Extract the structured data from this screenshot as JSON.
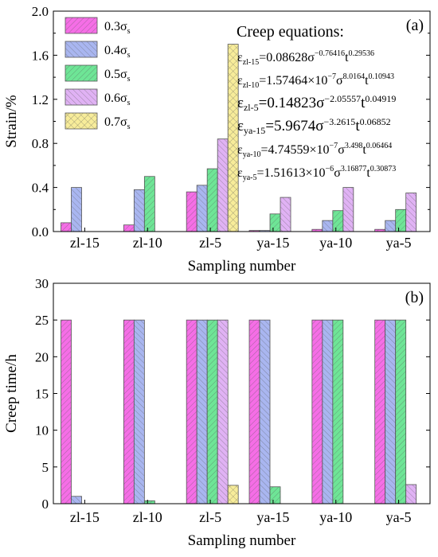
{
  "colors": {
    "0.3σs": "#f56ee6",
    "0.4σs": "#a9b6f0",
    "0.5σs": "#6ee596",
    "0.6σs": "#e0b2f4",
    "0.7σs": "#f7ec9a"
  },
  "chart_data": [
    {
      "type": "bar",
      "panel_label": "(a)",
      "ylabel": "Strain/%",
      "xlabel": "Sampling number",
      "ylim": [
        0,
        2.0
      ],
      "yticks": [
        "0.0",
        "0.4",
        "0.8",
        "1.2",
        "1.6",
        "2.0"
      ],
      "categories": [
        "zl-15",
        "zl-10",
        "zl-5",
        "ya-15",
        "ya-10",
        "ya-5"
      ],
      "legend_position": "top-left",
      "series": [
        {
          "name": "0.3σs",
          "base": "0.3σ",
          "sub": "s",
          "values": [
            0.08,
            0.06,
            0.36,
            0.01,
            0.02,
            0.02
          ]
        },
        {
          "name": "0.4σs",
          "base": "0.4σ",
          "sub": "s",
          "values": [
            0.4,
            0.38,
            0.42,
            0.01,
            0.1,
            0.1
          ]
        },
        {
          "name": "0.5σs",
          "base": "0.5σ",
          "sub": "s",
          "values": [
            0.0,
            0.5,
            0.57,
            0.16,
            0.19,
            0.2
          ]
        },
        {
          "name": "0.6σs",
          "base": "0.6σ",
          "sub": "s",
          "values": [
            0.0,
            0.0,
            0.84,
            0.31,
            0.4,
            0.35
          ]
        },
        {
          "name": "0.7σs",
          "base": "0.7σ",
          "sub": "s",
          "values": [
            0.0,
            0.0,
            1.7,
            0.0,
            0.0,
            0.0
          ]
        }
      ],
      "annotation_title": "Creep equations:",
      "equations": [
        {
          "sub": "zl-15",
          "text": "=0.08628σ",
          "exp1": "−0.76416",
          "t": "t",
          "exp2": "0.29536"
        },
        {
          "sub": "zl-10",
          "text": "=1.57464×10",
          "exp0": "−7",
          "sigma": "σ",
          "exp1": "8.0164",
          "t": "t",
          "exp2": "0.10943"
        },
        {
          "sub": "zl-5",
          "text": "=0.14823σ",
          "exp1": "−2.05557",
          "t": "t",
          "exp2": "0.04919"
        },
        {
          "sub": "ya-15",
          "text": "=5.9674σ",
          "exp1": "−3.2615",
          "t": "t",
          "exp2": "0.06852"
        },
        {
          "sub": "ya-10",
          "text": "=4.74559×10",
          "exp0": "−7",
          "sigma": "σ",
          "exp1": "3.498",
          "t": "t",
          "exp2": "0.06464"
        },
        {
          "sub": "ya-5",
          "text": "=1.51613×10",
          "exp0": "−6",
          "sigma": "σ",
          "exp1": "3.16877",
          "t": "t",
          "exp2": "0.30873"
        }
      ]
    },
    {
      "type": "bar",
      "panel_label": "(b)",
      "ylabel": "Creep time/h",
      "xlabel": "Sampling number",
      "ylim": [
        0,
        30
      ],
      "yticks": [
        "0",
        "5",
        "10",
        "15",
        "20",
        "25",
        "30"
      ],
      "categories": [
        "zl-15",
        "zl-10",
        "zl-5",
        "ya-15",
        "ya-10",
        "ya-5"
      ],
      "series": [
        {
          "name": "0.3σs",
          "values": [
            25,
            25,
            25,
            25,
            25,
            25
          ]
        },
        {
          "name": "0.4σs",
          "values": [
            1,
            25,
            25,
            25,
            25,
            25
          ]
        },
        {
          "name": "0.5σs",
          "values": [
            0,
            0.4,
            25,
            2.3,
            25,
            25
          ]
        },
        {
          "name": "0.6σs",
          "values": [
            0,
            0,
            25,
            0,
            0,
            2.6
          ]
        },
        {
          "name": "0.7σs",
          "values": [
            0,
            0,
            2.5,
            0,
            0,
            0
          ]
        }
      ]
    }
  ]
}
